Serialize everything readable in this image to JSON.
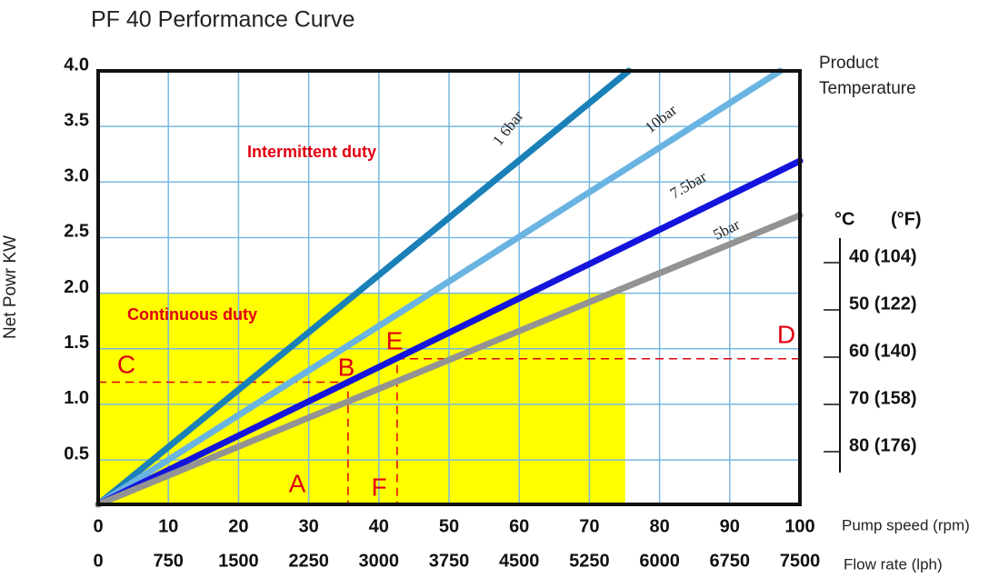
{
  "chart_data": {
    "type": "line",
    "title": "PF 40 Performance Curve",
    "y_label": "Net Powr KW",
    "x_label": "Pump speed (rpm)",
    "x2_label": "Flow rate (lph)",
    "xlim": [
      0,
      100
    ],
    "xticks": [
      0,
      10,
      20,
      30,
      40,
      50,
      60,
      70,
      80,
      90,
      100
    ],
    "x2lim": [
      0,
      7500
    ],
    "x2ticks": [
      0,
      750,
      1500,
      2250,
      3000,
      3750,
      4500,
      5250,
      6000,
      6750,
      7500
    ],
    "ylim": [
      0.1,
      4.0
    ],
    "yticks": [
      0.5,
      {
        "value": 1,
        "label": "1.0"
      },
      1.5,
      {
        "value": 2,
        "label": "2.0"
      },
      2.5,
      {
        "value": 3,
        "label": "3.0"
      },
      3.5,
      {
        "value": 4,
        "label": "4.0"
      }
    ],
    "grid": true,
    "grid_color": "#7ab8e0",
    "series": [
      {
        "name": "1 6bar",
        "color": "#1a80b8",
        "x": [
          0,
          75.6
        ],
        "values": [
          0.1,
          4.0
        ]
      },
      {
        "name": "10bar",
        "color": "#6ab4e2",
        "x": [
          0,
          97.2
        ],
        "values": [
          0.1,
          4.0
        ]
      },
      {
        "name": "7.5bar",
        "color": "#1414dc",
        "x": [
          0,
          100
        ],
        "values": [
          0.1,
          3.19
        ]
      },
      {
        "name": "5bar",
        "color": "#939393",
        "x": [
          0,
          100
        ],
        "values": [
          0.1,
          2.7
        ]
      }
    ],
    "continuous_duty_region": {
      "x": [
        0,
        75.1
      ],
      "values": [
        0.1,
        2.0
      ],
      "color": "#ffff00"
    },
    "reference_lines": [
      {
        "x": [
          0,
          35.6,
          35.6
        ],
        "values": [
          1.2,
          1.2,
          0.1
        ]
      },
      {
        "x": [
          100,
          42.6,
          42.6
        ],
        "values": [
          1.41,
          1.41,
          0.1
        ]
      }
    ],
    "annotations": [
      "Intermittent duty",
      "Continuous duty",
      "A",
      "B",
      "C",
      "D",
      "E",
      "F"
    ],
    "temperature_scale": {
      "title": [
        "Product",
        "Temperature"
      ],
      "units": [
        "°C",
        "(°F)"
      ],
      "labels": [
        "40 (104)",
        "50 (122)",
        "60 (140)",
        "70 (158)",
        "80 (176)"
      ]
    }
  }
}
